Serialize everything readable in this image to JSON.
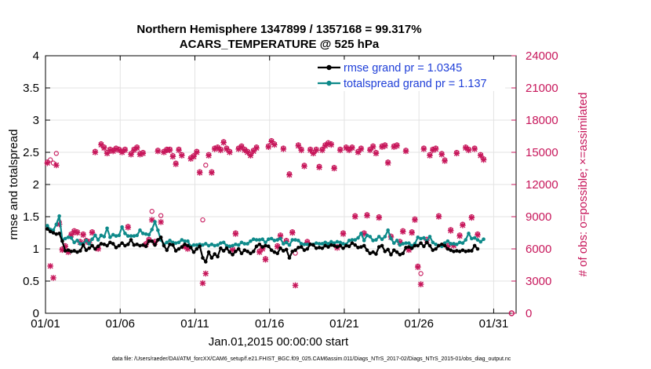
{
  "chart_data": {
    "type": "line",
    "title_line1": "Northern Hemisphere 1347899 / 1357168 = 99.317%",
    "title_line2": "ACARS_TEMPERATURE @ 525 hPa",
    "xlabel": "Jan.01,2015 00:00:00 start",
    "ylabel": "rmse and totalspread",
    "y2label": "# of obs: o=possible; ×=assimilated",
    "x_ticks": [
      "01/01",
      "01/06",
      "01/11",
      "01/16",
      "01/21",
      "01/26",
      "01/31"
    ],
    "x_tick_days": [
      0,
      5,
      10,
      15,
      20,
      25,
      30
    ],
    "xlim": [
      0,
      31.5
    ],
    "ylim": [
      0,
      4
    ],
    "y_ticks": [
      "0",
      "0.5",
      "1",
      "1.5",
      "2",
      "2.5",
      "3",
      "3.5",
      "4"
    ],
    "y2lim": [
      0,
      24000
    ],
    "y2_ticks": [
      "0",
      "3000",
      "6000",
      "9000",
      "12000",
      "15000",
      "18000",
      "21000",
      "24000"
    ],
    "legend": [
      {
        "label": "rmse grand pr = 1.0345",
        "color": "#000000"
      },
      {
        "label": "totalspread grand pr = 1.137",
        "color": "#0e8a8a"
      }
    ],
    "footer": "data file: /Users/raeder/DAI/ATM_forcXX/CAM6_setup/f.e21.FHIST_BGC.f09_025.CAM6assim.011/Diags_NTrS_2017-02/Diags_NTrS_2015-01/obs_diag_output.nc",
    "series": [
      {
        "name": "rmse",
        "color": "#000000",
        "values": [
          1.31,
          1.27,
          1.25,
          1.23,
          1.24,
          1.12,
          0.97,
          0.98,
          0.96,
          0.97,
          0.95,
          0.97,
          1.06,
          0.98,
          1.01,
          1.05,
          1.0,
          1.04,
          1.08,
          1.07,
          1.05,
          1.1,
          1.08,
          1.02,
          1.05,
          1.09,
          1.05,
          1.07,
          1.14,
          1.06,
          1.07,
          1.05,
          1.06,
          1.04,
          1.12,
          1.12,
          1.06,
          1.14,
          1.18,
          1.05,
          0.98,
          1.07,
          1.06,
          0.97,
          1.0,
          1.03,
          1.07,
          1.05,
          1.02,
          0.95,
          1.0,
          1.04,
          0.86,
          0.8,
          0.95,
          0.86,
          0.92,
          0.88,
          1.01,
          0.97,
          1.01,
          0.95,
          0.91,
          0.96,
          1.0,
          0.93,
          0.98,
          0.96,
          0.93,
          0.96,
          1.04,
          1.07,
          1.03,
          1.05,
          1.04,
          0.98,
          0.95,
          0.93,
          1.01,
          0.97,
          0.99,
          0.86,
          0.96,
          0.98,
          1.02,
          1.03,
          0.98,
          1.0,
          1.07,
          1.06,
          1.01,
          1.02,
          1.01,
          1.05,
          1.03,
          1.06,
          1.05,
          1.03,
          1.05,
          1.01,
          1.05,
          1.04,
          1.09,
          1.06,
          1.02,
          1.03,
          1.05,
          0.98,
          0.93,
          0.95,
          0.92,
          1.03,
          1.05,
          0.96,
          0.99,
          0.91,
          0.98,
          0.95,
          0.91,
          0.93,
          1.02,
          1.03,
          1.01,
          1.05,
          1.05,
          1.09,
          1.04,
          1.1,
          1.05,
          0.98,
          1.0,
          1.05,
          1.07,
          1.05,
          1.0,
          0.98,
          0.96,
          0.97,
          0.96,
          0.98,
          0.96,
          0.97,
          0.97,
          1.05,
          1.0
        ]
      },
      {
        "name": "totalspread",
        "color": "#0e8a8a",
        "values": [
          1.36,
          1.3,
          1.29,
          1.38,
          1.51,
          1.14,
          1.16,
          1.18,
          1.17,
          1.1,
          1.13,
          1.08,
          1.08,
          1.13,
          1.08,
          1.15,
          1.21,
          1.14,
          1.21,
          1.19,
          1.32,
          1.18,
          1.22,
          1.2,
          1.21,
          1.34,
          1.24,
          1.2,
          1.2,
          1.2,
          1.21,
          1.29,
          1.24,
          1.23,
          1.22,
          1.3,
          1.42,
          1.29,
          1.14,
          1.07,
          1.1,
          1.13,
          1.1,
          1.09,
          1.1,
          1.14,
          1.12,
          1.12,
          1.04,
          1.06,
          1.06,
          1.07,
          1.06,
          1.08,
          1.05,
          1.07,
          1.05,
          1.06,
          1.09,
          1.1,
          1.05,
          1.04,
          1.05,
          1.07,
          1.06,
          1.1,
          1.08,
          1.08,
          1.12,
          1.15,
          1.14,
          1.14,
          1.15,
          1.1,
          1.15,
          1.16,
          1.13,
          1.14,
          1.16,
          1.08,
          1.1,
          1.06,
          1.14,
          1.14,
          1.13,
          1.08,
          1.07,
          1.07,
          1.07,
          1.07,
          1.09,
          1.08,
          1.08,
          1.1,
          1.08,
          1.11,
          1.09,
          1.11,
          1.1,
          1.08,
          1.07,
          1.13,
          1.14,
          1.14,
          1.17,
          1.24,
          1.13,
          1.21,
          1.19,
          1.13,
          1.14,
          1.19,
          1.15,
          1.19,
          1.29,
          1.16,
          1.09,
          1.13,
          1.06,
          1.08,
          1.09,
          1.09,
          1.05,
          1.08,
          1.18,
          1.16,
          1.17,
          1.12,
          1.19,
          1.1,
          1.07,
          1.05,
          1.04,
          1.09,
          1.12,
          1.08,
          1.08,
          1.07,
          1.1,
          1.09,
          1.14,
          1.24,
          1.16,
          1.17,
          1.14,
          1.11,
          1.15
        ]
      }
    ],
    "obs_series": [
      {
        "name": "possible",
        "marker": "o",
        "color": "#c7175b",
        "values": [
          14100,
          14300,
          14000,
          14900,
          8500,
          6000,
          6300,
          5800,
          7400,
          7700,
          7600,
          6700,
          7400,
          6800,
          6700,
          7600,
          15100,
          6100,
          15800,
          15500,
          15000,
          15300,
          15200,
          15400,
          15300,
          15100,
          15300,
          8100,
          14900,
          15300,
          15500,
          14900,
          15000,
          6500,
          6900,
          9500,
          6700,
          15200,
          9100,
          15100,
          15300,
          15300,
          14700,
          14000,
          15300,
          14800,
          6300,
          6100,
          14500,
          14700,
          15100,
          13200,
          8700,
          13800,
          14800,
          13200,
          15400,
          15500,
          15300,
          16000,
          15400,
          15100,
          6000,
          7500,
          15400,
          15600,
          15300,
          15100,
          14800,
          15200,
          15500,
          5800,
          6100,
          5100,
          15600,
          16100,
          15800,
          6300,
          7300,
          15400,
          6800,
          13000,
          7600,
          5600,
          15700,
          15300,
          13800,
          6700,
          15300,
          15000,
          15300,
          13700,
          15300,
          15700,
          15900,
          15800,
          13600,
          6200,
          15300,
          7500,
          15500,
          15300,
          15500,
          9100,
          15100,
          15400,
          7500,
          9200,
          15300,
          15600,
          15000,
          9000,
          15600,
          15700,
          14100,
          7200,
          15600,
          15700,
          6700,
          7700,
          15200,
          6000,
          7600,
          8800,
          4400,
          3700,
          15400,
          6900,
          14800,
          15300,
          15400,
          9100,
          14900,
          14300,
          6300,
          7800,
          6400,
          15000,
          7300,
          8300,
          15500,
          15300,
          9000,
          15400,
          7400,
          14800,
          14400
        ]
      },
      {
        "name": "assimilated",
        "marker": "x",
        "color": "#c7175b",
        "values": [
          14000,
          4400,
          3300,
          13800,
          8300,
          5900,
          6200,
          5700,
          7300,
          7600,
          7500,
          6600,
          7300,
          6700,
          6600,
          7500,
          15000,
          6000,
          15700,
          15400,
          14900,
          15200,
          15100,
          15300,
          15200,
          15000,
          15200,
          8000,
          14800,
          15200,
          15400,
          14800,
          14900,
          6400,
          6800,
          8700,
          6600,
          15100,
          8500,
          15000,
          15200,
          15200,
          14600,
          13900,
          15200,
          14700,
          6200,
          6000,
          14400,
          14600,
          15000,
          13100,
          2800,
          3700,
          14700,
          13100,
          15300,
          15400,
          15200,
          15900,
          15300,
          15000,
          5900,
          7400,
          15300,
          15500,
          15200,
          15000,
          14700,
          15100,
          15400,
          5700,
          6000,
          5000,
          15500,
          16000,
          15700,
          6200,
          7200,
          15300,
          6700,
          12900,
          7500,
          2600,
          15600,
          15200,
          13700,
          6600,
          15200,
          14900,
          15200,
          13600,
          15200,
          15600,
          15800,
          15700,
          13500,
          6100,
          15200,
          7400,
          15400,
          15200,
          15400,
          9000,
          15000,
          15300,
          7400,
          9100,
          15200,
          15500,
          14900,
          8900,
          15500,
          15600,
          14000,
          7100,
          15500,
          15600,
          6600,
          7600,
          15100,
          5900,
          7500,
          8700,
          4300,
          2700,
          15300,
          6800,
          14700,
          15200,
          15300,
          9000,
          14800,
          14200,
          6200,
          7700,
          6300,
          14900,
          7200,
          8200,
          15400,
          15200,
          8900,
          15300,
          7300,
          14700,
          14300
        ]
      }
    ],
    "obs_endpoint": {
      "day": 31.2,
      "value": 0
    }
  },
  "colors": {
    "rmse": "#000000",
    "spread": "#0e8a8a",
    "obs": "#c7175b",
    "legend_text": "#1f3fd8"
  }
}
